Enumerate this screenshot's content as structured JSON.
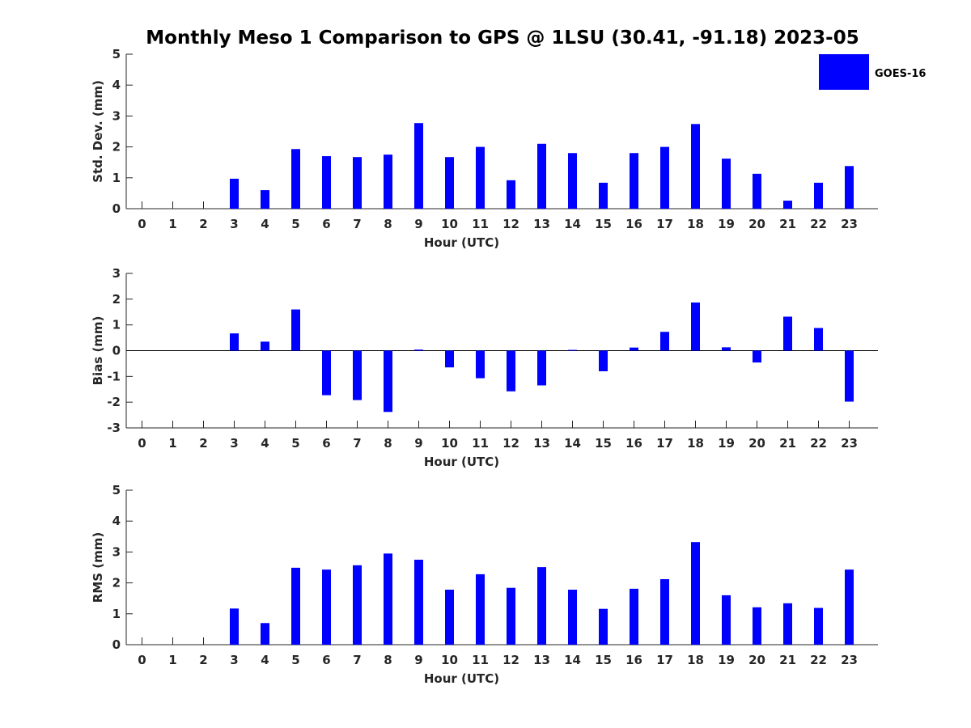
{
  "title": "Monthly Meso 1 Comparison to GPS @ 1LSU (30.41, -91.18) 2023-05",
  "legend": {
    "label": "GOES-16",
    "color": "#0000ff"
  },
  "chart_data": [
    {
      "type": "bar",
      "name": "std-dev",
      "xlabel": "Hour (UTC)",
      "ylabel": "Std. Dev. (mm)",
      "ylim": [
        0,
        5
      ],
      "yticks": [
        0,
        1,
        2,
        3,
        4,
        5
      ],
      "categories": [
        "0",
        "1",
        "2",
        "3",
        "4",
        "5",
        "6",
        "7",
        "8",
        "9",
        "10",
        "11",
        "12",
        "13",
        "14",
        "15",
        "16",
        "17",
        "18",
        "19",
        "20",
        "21",
        "22",
        "23"
      ],
      "series": [
        {
          "name": "GOES-16",
          "color": "#0000ff",
          "values": [
            null,
            null,
            null,
            0.97,
            0.6,
            1.93,
            1.7,
            1.67,
            1.75,
            2.77,
            1.67,
            2.0,
            0.92,
            2.1,
            1.8,
            0.84,
            1.8,
            2.0,
            2.74,
            1.62,
            1.13,
            0.26,
            0.84,
            1.38
          ]
        }
      ]
    },
    {
      "type": "bar",
      "name": "bias",
      "xlabel": "Hour (UTC)",
      "ylabel": "Bias (mm)",
      "ylim": [
        -3,
        3
      ],
      "yticks": [
        -3,
        -2,
        -1,
        0,
        1,
        2,
        3
      ],
      "zero_line": true,
      "categories": [
        "0",
        "1",
        "2",
        "3",
        "4",
        "5",
        "6",
        "7",
        "8",
        "9",
        "10",
        "11",
        "12",
        "13",
        "14",
        "15",
        "16",
        "17",
        "18",
        "19",
        "20",
        "21",
        "22",
        "23"
      ],
      "series": [
        {
          "name": "GOES-16",
          "color": "#0000ff",
          "values": [
            null,
            null,
            null,
            0.67,
            0.35,
            1.6,
            -1.73,
            -1.92,
            -2.38,
            0.04,
            -0.65,
            -1.07,
            -1.58,
            -1.35,
            0.03,
            -0.8,
            0.12,
            0.73,
            1.87,
            0.13,
            -0.46,
            1.32,
            0.88,
            -1.98
          ]
        }
      ]
    },
    {
      "type": "bar",
      "name": "rms",
      "xlabel": "Hour (UTC)",
      "ylabel": "RMS (mm)",
      "ylim": [
        0,
        5
      ],
      "yticks": [
        0,
        1,
        2,
        3,
        4,
        5
      ],
      "categories": [
        "0",
        "1",
        "2",
        "3",
        "4",
        "5",
        "6",
        "7",
        "8",
        "9",
        "10",
        "11",
        "12",
        "13",
        "14",
        "15",
        "16",
        "17",
        "18",
        "19",
        "20",
        "21",
        "22",
        "23"
      ],
      "series": [
        {
          "name": "GOES-16",
          "color": "#0000ff",
          "values": [
            null,
            null,
            null,
            1.17,
            0.7,
            2.49,
            2.43,
            2.57,
            2.95,
            2.75,
            1.78,
            2.28,
            1.84,
            2.51,
            1.78,
            1.16,
            1.81,
            2.12,
            3.32,
            1.6,
            1.21,
            1.34,
            1.19,
            2.43
          ]
        }
      ]
    }
  ]
}
